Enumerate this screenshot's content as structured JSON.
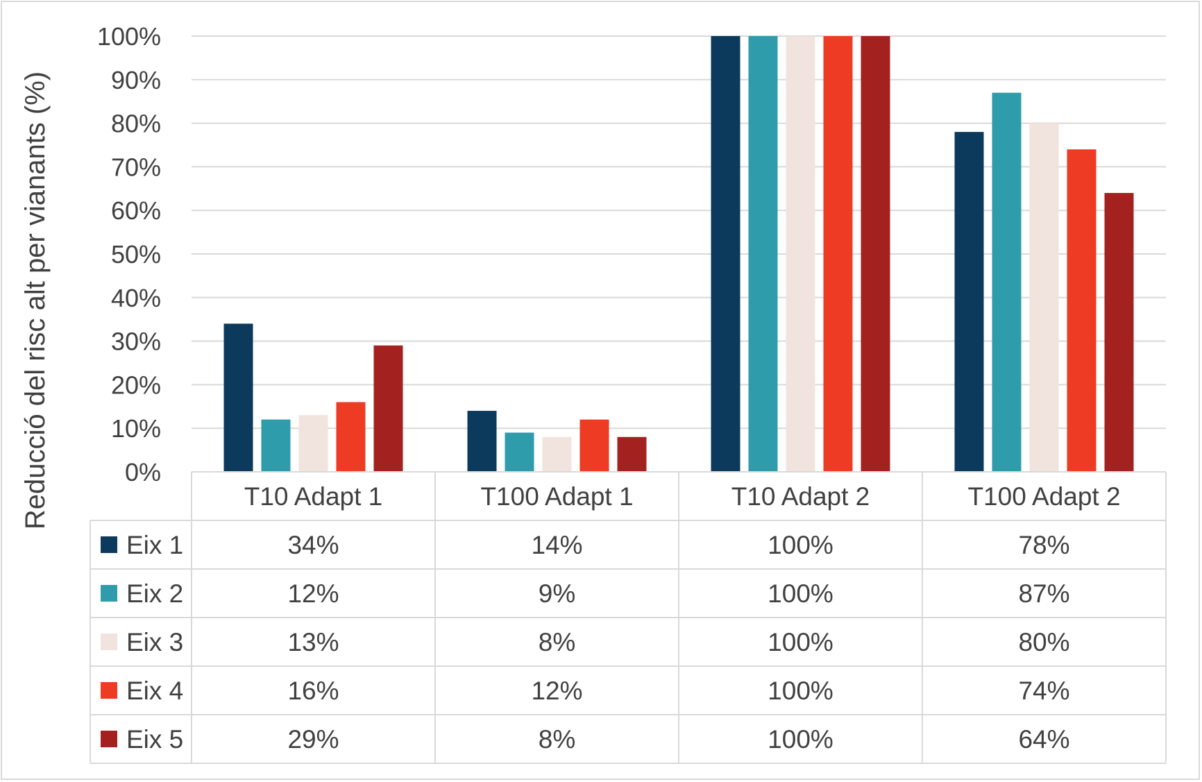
{
  "chart_data": {
    "type": "bar",
    "title": "",
    "xlabel": "",
    "ylabel": "Reducció del risc alt per vianants (%)",
    "ylim": [
      0,
      100
    ],
    "y_ticks": [
      "0%",
      "10%",
      "20%",
      "30%",
      "40%",
      "50%",
      "60%",
      "70%",
      "80%",
      "90%",
      "100%"
    ],
    "grid": true,
    "legend": "data-table",
    "categories": [
      "T10 Adapt 1",
      "T100 Adapt 1",
      "T10 Adapt 2",
      "T100 Adapt 2"
    ],
    "series": [
      {
        "name": "Eix 1",
        "color": "#0b3a5c",
        "values": [
          34,
          14,
          100,
          78
        ],
        "labels": [
          "34%",
          "14%",
          "100%",
          "78%"
        ]
      },
      {
        "name": "Eix 2",
        "color": "#2e9caa",
        "values": [
          12,
          9,
          100,
          87
        ],
        "labels": [
          "12%",
          "9%",
          "100%",
          "87%"
        ]
      },
      {
        "name": "Eix 3",
        "color": "#f1e3dd",
        "values": [
          13,
          8,
          100,
          80
        ],
        "labels": [
          "13%",
          "8%",
          "100%",
          "80%"
        ]
      },
      {
        "name": "Eix 4",
        "color": "#ee3b24",
        "values": [
          16,
          12,
          100,
          74
        ],
        "labels": [
          "16%",
          "12%",
          "100%",
          "74%"
        ]
      },
      {
        "name": "Eix 5",
        "color": "#a3221f",
        "values": [
          29,
          8,
          100,
          64
        ],
        "labels": [
          "29%",
          "8%",
          "100%",
          "64%"
        ]
      }
    ]
  }
}
